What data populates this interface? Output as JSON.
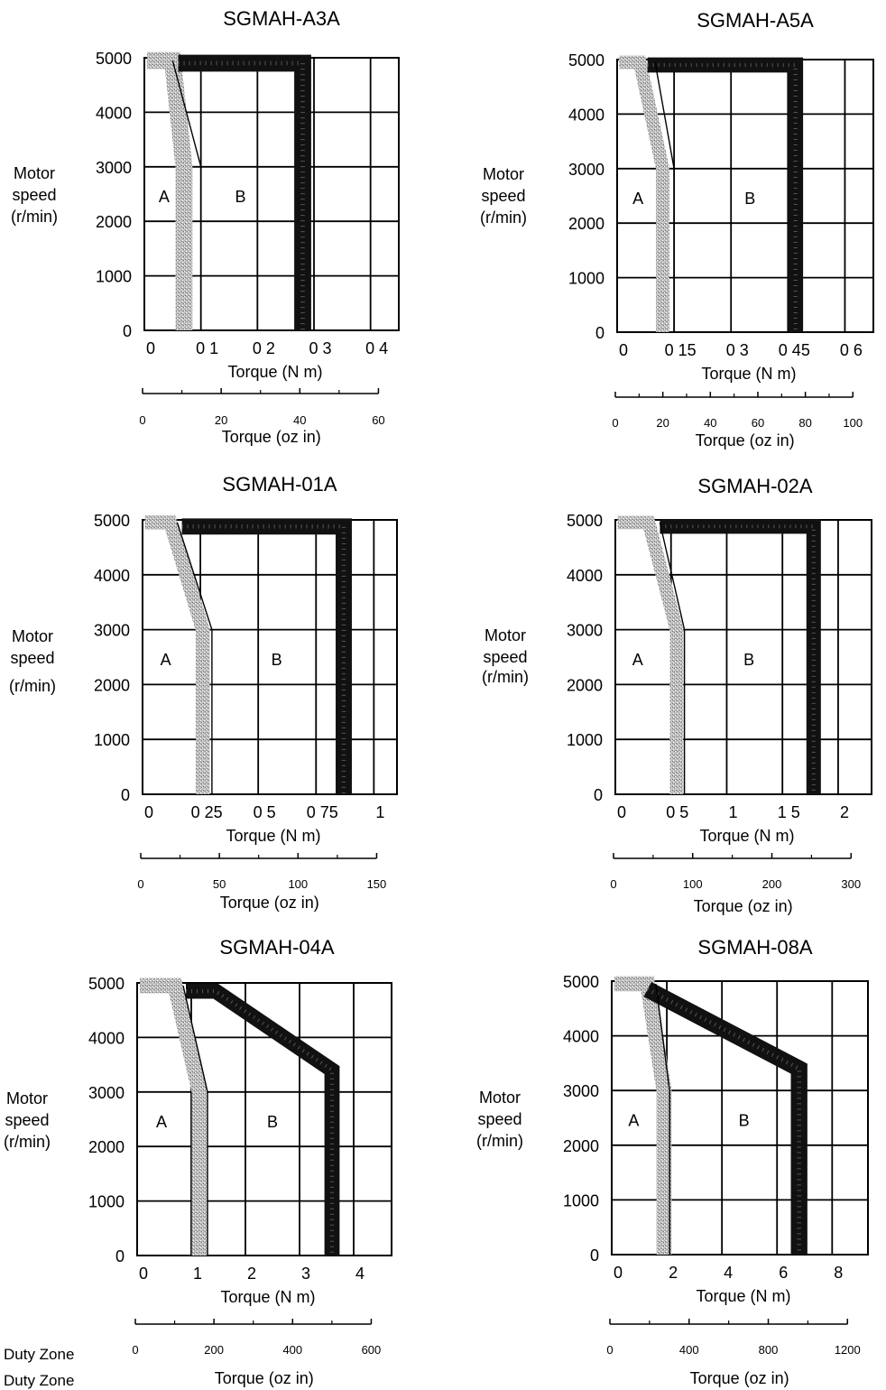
{
  "footer": {
    "label1": "Duty Zone",
    "label2": "Duty Zone"
  },
  "chart_data": [
    {
      "type": "line",
      "title": "SGMAH-A3A",
      "ylabel": [
        "Motor",
        "speed",
        "(r/min)"
      ],
      "xlabel": "Torque (N m)",
      "xlabel2": "Torque (oz in)",
      "xlim": [
        0,
        0.45
      ],
      "ylim": [
        0,
        5000
      ],
      "xticks": [
        0,
        0.1,
        0.2,
        0.3,
        0.4
      ],
      "xtick_labels": [
        "0",
        "0 1",
        "0 2",
        "0 3",
        "0 4"
      ],
      "yticks": [
        0,
        1000,
        2000,
        3000,
        4000,
        5000
      ],
      "ytick_labels": [
        "0",
        "1000",
        "2000",
        "3000",
        "4000",
        "5000"
      ],
      "x2lim": [
        0,
        60
      ],
      "x2ticks": [
        0,
        20,
        40,
        60
      ],
      "x2tick_labels": [
        "0",
        "20",
        "40",
        "60"
      ],
      "x2minor": [
        10,
        30,
        50
      ],
      "zone_labels": [
        {
          "text": "A",
          "x": 0.035,
          "y": 2350
        },
        {
          "text": "B",
          "x": 0.17,
          "y": 2350
        }
      ],
      "series": [
        {
          "name": "A",
          "style": "gray",
          "width": 0.03,
          "points": [
            [
              0.005,
              4950
            ],
            [
              0.05,
              4950
            ],
            [
              0.07,
              3000
            ],
            [
              0.07,
              0
            ]
          ]
        },
        {
          "name": "B",
          "style": "black",
          "width": 0.03,
          "points": [
            [
              0.06,
              4900
            ],
            [
              0.28,
              4900
            ],
            [
              0.28,
              0
            ]
          ]
        }
      ],
      "lines": [
        [
          [
            0.05,
            4950
          ],
          [
            0.1,
            3000
          ],
          [
            0.1,
            0
          ]
        ]
      ]
    },
    {
      "type": "line",
      "title": "SGMAH-A5A",
      "ylabel": [
        "Motor",
        "speed",
        "(r/min)"
      ],
      "xlabel": "Torque (N m)",
      "xlabel2": "Torque (oz in)",
      "xlim": [
        0,
        0.675
      ],
      "ylim": [
        0,
        5000
      ],
      "xticks": [
        0,
        0.15,
        0.3,
        0.45,
        0.6
      ],
      "xtick_labels": [
        "0",
        "0 15",
        "0 3",
        "0 45",
        "0 6"
      ],
      "yticks": [
        0,
        1000,
        2000,
        3000,
        4000,
        5000
      ],
      "ytick_labels": [
        "0",
        "1000",
        "2000",
        "3000",
        "4000",
        "5000"
      ],
      "x2lim": [
        0,
        100
      ],
      "x2ticks": [
        0,
        20,
        40,
        60,
        80,
        100
      ],
      "x2tick_labels": [
        "0",
        "20",
        "40",
        "60",
        "80",
        "100"
      ],
      "x2minor": [
        10,
        30,
        50,
        70,
        90
      ],
      "zone_labels": [
        {
          "text": "A",
          "x": 0.055,
          "y": 2350
        },
        {
          "text": "B",
          "x": 0.35,
          "y": 2350
        }
      ],
      "series": [
        {
          "name": "A",
          "style": "gray",
          "width": 0.035,
          "points": [
            [
              0.005,
              4950
            ],
            [
              0.06,
              4950
            ],
            [
              0.12,
              3000
            ],
            [
              0.12,
              0
            ]
          ]
        },
        {
          "name": "B",
          "style": "black",
          "width": 0.04,
          "points": [
            [
              0.08,
              4900
            ],
            [
              0.47,
              4900
            ],
            [
              0.47,
              0
            ]
          ]
        }
      ],
      "lines": [
        [
          [
            0.1,
            4950
          ],
          [
            0.15,
            3000
          ],
          [
            0.15,
            0
          ]
        ]
      ]
    },
    {
      "type": "line",
      "title": "SGMAH-01A",
      "ylabel": [
        "Motor",
        "speed",
        "(r/min)"
      ],
      "xlabel": "Torque (N m)",
      "xlabel2": "Torque (oz in)",
      "xlim": [
        0,
        1.1
      ],
      "ylim": [
        0,
        5000
      ],
      "xticks": [
        0,
        0.25,
        0.5,
        0.75,
        1
      ],
      "xtick_labels": [
        "0",
        "0 25",
        "0 5",
        "0 75",
        "1"
      ],
      "yticks": [
        0,
        1000,
        2000,
        3000,
        4000,
        5000
      ],
      "ytick_labels": [
        "0",
        "1000",
        "2000",
        "3000",
        "4000",
        "5000"
      ],
      "x2lim": [
        0,
        150
      ],
      "x2ticks": [
        0,
        50,
        100,
        150
      ],
      "x2tick_labels": [
        "0",
        "50",
        "100",
        "150"
      ],
      "x2minor": [
        25,
        75,
        125
      ],
      "zone_labels": [
        {
          "text": "A",
          "x": 0.1,
          "y": 2350
        },
        {
          "text": "B",
          "x": 0.58,
          "y": 2350
        }
      ],
      "series": [
        {
          "name": "A",
          "style": "gray",
          "width": 0.06,
          "points": [
            [
              0.01,
              4950
            ],
            [
              0.12,
              4950
            ],
            [
              0.26,
              3000
            ],
            [
              0.26,
              0
            ]
          ]
        },
        {
          "name": "B",
          "style": "black",
          "width": 0.07,
          "points": [
            [
              0.17,
              4880
            ],
            [
              0.87,
              4880
            ],
            [
              0.87,
              0
            ]
          ]
        }
      ],
      "lines": [
        [
          [
            0.15,
            4950
          ],
          [
            0.3,
            3000
          ],
          [
            0.3,
            0
          ]
        ]
      ]
    },
    {
      "type": "line",
      "title": "SGMAH-02A",
      "ylabel": [
        "Motor",
        "speed",
        "(r/min)"
      ],
      "xlabel": "Torque (N m)",
      "xlabel2": "Torque (oz in)",
      "xlim": [
        0,
        2.3
      ],
      "ylim": [
        0,
        5000
      ],
      "xticks": [
        0,
        0.5,
        1,
        1.5,
        2
      ],
      "xtick_labels": [
        "0",
        "0 5",
        "1",
        "1 5",
        "2"
      ],
      "yticks": [
        0,
        1000,
        2000,
        3000,
        4000,
        5000
      ],
      "ytick_labels": [
        "0",
        "1000",
        "2000",
        "3000",
        "4000",
        "5000"
      ],
      "x2lim": [
        0,
        300
      ],
      "x2ticks": [
        0,
        100,
        200,
        300
      ],
      "x2tick_labels": [
        "0",
        "100",
        "200",
        "300"
      ],
      "x2minor": [
        50,
        150,
        250
      ],
      "zone_labels": [
        {
          "text": "A",
          "x": 0.2,
          "y": 2350
        },
        {
          "text": "B",
          "x": 1.2,
          "y": 2350
        }
      ],
      "series": [
        {
          "name": "A",
          "style": "gray",
          "width": 0.12,
          "points": [
            [
              0.02,
              4950
            ],
            [
              0.3,
              4950
            ],
            [
              0.55,
              3000
            ],
            [
              0.55,
              0
            ]
          ]
        },
        {
          "name": "B",
          "style": "black",
          "width": 0.13,
          "points": [
            [
              0.4,
              4880
            ],
            [
              1.78,
              4880
            ],
            [
              1.78,
              0
            ]
          ]
        }
      ],
      "lines": [
        [
          [
            0.4,
            4950
          ],
          [
            0.62,
            3000
          ],
          [
            0.62,
            0
          ]
        ]
      ]
    },
    {
      "type": "line",
      "title": "SGMAH-04A",
      "ylabel": [
        "Motor",
        "speed",
        "(r/min)"
      ],
      "xlabel": "Torque (N m)",
      "xlabel2": "Torque (oz in)",
      "xlim": [
        0,
        4.7
      ],
      "ylim": [
        0,
        5000
      ],
      "xticks": [
        0,
        1,
        2,
        3,
        4
      ],
      "xtick_labels": [
        "0",
        "1",
        "2",
        "3",
        "4"
      ],
      "yticks": [
        0,
        1000,
        2000,
        3000,
        4000,
        5000
      ],
      "ytick_labels": [
        "0",
        "1000",
        "2000",
        "3000",
        "4000",
        "5000"
      ],
      "x2lim": [
        0,
        600
      ],
      "x2ticks": [
        0,
        200,
        400,
        600
      ],
      "x2tick_labels": [
        "0",
        "200",
        "400",
        "600"
      ],
      "x2minor": [
        100,
        300,
        500
      ],
      "zone_labels": [
        {
          "text": "A",
          "x": 0.45,
          "y": 2350
        },
        {
          "text": "B",
          "x": 2.5,
          "y": 2350
        }
      ],
      "series": [
        {
          "name": "A",
          "style": "gray",
          "width": 0.28,
          "points": [
            [
              0.05,
              4950
            ],
            [
              0.7,
              4950
            ],
            [
              1.15,
              3000
            ],
            [
              1.15,
              0
            ]
          ]
        },
        {
          "name": "B",
          "style": "black",
          "width": 0.28,
          "points": [
            [
              0.9,
              4850
            ],
            [
              1.45,
              4850
            ],
            [
              3.6,
              3400
            ],
            [
              3.6,
              0
            ]
          ]
        }
      ],
      "lines": [
        [
          [
            0.85,
            4950
          ],
          [
            1.3,
            3000
          ],
          [
            1.3,
            0
          ]
        ]
      ]
    },
    {
      "type": "line",
      "title": "SGMAH-08A",
      "ylabel": [
        "Motor",
        "speed",
        "(r/min)"
      ],
      "xlabel": "Torque (N m)",
      "xlabel2": "Torque (oz in)",
      "xlim": [
        0,
        9.3
      ],
      "ylim": [
        0,
        5000
      ],
      "xticks": [
        0,
        2,
        4,
        6,
        8
      ],
      "xtick_labels": [
        "0",
        "2",
        "4",
        "6",
        "8"
      ],
      "yticks": [
        0,
        1000,
        2000,
        3000,
        4000,
        5000
      ],
      "ytick_labels": [
        "0",
        "1000",
        "2000",
        "3000",
        "4000",
        "5000"
      ],
      "x2lim": [
        0,
        1200
      ],
      "x2ticks": [
        0,
        400,
        800,
        1200
      ],
      "x2tick_labels": [
        "0",
        "400",
        "800",
        "1200"
      ],
      "x2minor": [
        200,
        600,
        1000
      ],
      "zone_labels": [
        {
          "text": "A",
          "x": 0.8,
          "y": 2350
        },
        {
          "text": "B",
          "x": 4.8,
          "y": 2350
        }
      ],
      "series": [
        {
          "name": "A",
          "style": "gray",
          "width": 0.55,
          "points": [
            [
              0.1,
              4950
            ],
            [
              1.3,
              4950
            ],
            [
              1.9,
              3000
            ],
            [
              1.9,
              0
            ]
          ]
        },
        {
          "name": "B",
          "style": "black",
          "width": 0.6,
          "points": [
            [
              1.3,
              4850
            ],
            [
              6.8,
              3400
            ],
            [
              6.8,
              0
            ]
          ]
        }
      ],
      "lines": [
        [
          [
            1.6,
            4950
          ],
          [
            2.1,
            3000
          ],
          [
            2.1,
            0
          ]
        ]
      ]
    }
  ]
}
